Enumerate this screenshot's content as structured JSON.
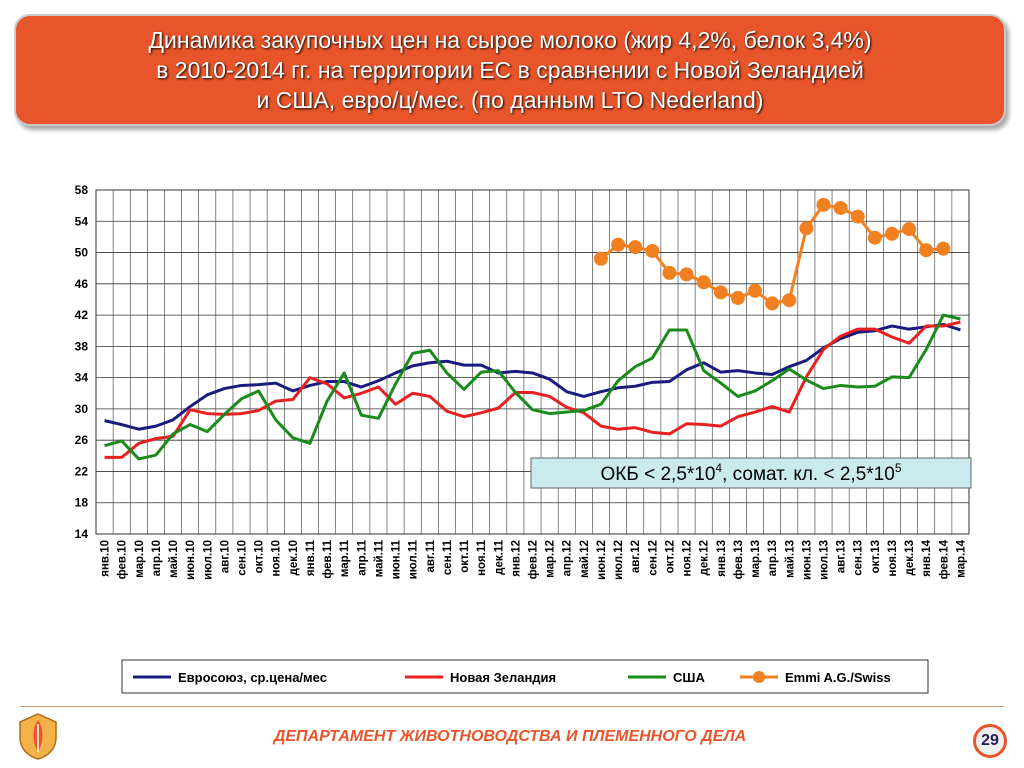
{
  "slide": {
    "title": "Динамика закупочных цен на сырое молоко (жир 4,2%, белок 3,4%)\nв 2010-2014 гг. на территории ЕС в сравнении с Новой Зеландией\nи США, евро/ц/мес. (по данным LTO Nederland)",
    "footer": "ДЕПАРТАМЕНТ ЖИВОТНОВОДСТВА И ПЛЕМЕННОГО ДЕЛА",
    "page_number": "29",
    "logo_icon": "agriculture-emblem-icon"
  },
  "chart_data": {
    "type": "line",
    "title": "",
    "xlabel": "",
    "ylabel": "",
    "ylim": [
      14,
      58
    ],
    "yticks": [
      14,
      18,
      22,
      26,
      30,
      34,
      38,
      42,
      46,
      50,
      54,
      58
    ],
    "grid": "horizontal and vertical",
    "legend_position": "bottom",
    "annotation": {
      "text_pre": "ОКБ < 2,5*10",
      "sup1": "4",
      "text_mid": ", сомат. кл. < 2,5*10",
      "sup2": "5"
    },
    "categories": [
      "янв.10",
      "фев.10",
      "мар.10",
      "апр.10",
      "май.10",
      "июн.10",
      "июл.10",
      "авг.10",
      "сен.10",
      "окт.10",
      "ноя.10",
      "дек.10",
      "янв.11",
      "фев.11",
      "мар.11",
      "апр.11",
      "май.11",
      "июн.11",
      "июл.11",
      "авг.11",
      "сен.11",
      "окт.11",
      "ноя.11",
      "дек.11",
      "янв.12",
      "фев.12",
      "мар.12",
      "апр.12",
      "май.12",
      "июн.12",
      "июл.12",
      "авг.12",
      "сен.12",
      "окт.12",
      "ноя.12",
      "дек.12",
      "янв.13",
      "фев.13",
      "мар.13",
      "апр.13",
      "май.13",
      "июн.13",
      "июл.13",
      "авг.13",
      "сен.13",
      "окт.13",
      "ноя.13",
      "дек.13",
      "янв.14",
      "фев.14",
      "мар.14"
    ],
    "series": [
      {
        "name": "Евросоюз, ср.цена/мес",
        "color": "#1a1a80",
        "marker": "none",
        "values": [
          28.5,
          28.0,
          27.4,
          27.8,
          28.6,
          30.3,
          31.8,
          32.6,
          33.0,
          33.1,
          33.3,
          32.3,
          33.0,
          33.5,
          33.5,
          32.8,
          33.6,
          34.6,
          35.5,
          35.9,
          36.1,
          35.6,
          35.6,
          34.6,
          34.8,
          34.6,
          33.8,
          32.2,
          31.6,
          32.2,
          32.7,
          32.9,
          33.4,
          33.5,
          35.0,
          35.9,
          34.7,
          34.9,
          34.6,
          34.4,
          35.4,
          36.2,
          37.8,
          39.0,
          39.8,
          40.0,
          40.6,
          40.2,
          40.5,
          40.8,
          40.1
        ]
      },
      {
        "name": "Новая Зеландия",
        "color": "#e82020",
        "marker": "none",
        "values": [
          23.8,
          23.8,
          25.6,
          26.2,
          26.5,
          29.9,
          29.4,
          29.3,
          29.4,
          29.8,
          31.0,
          31.2,
          34.0,
          33.2,
          31.4,
          32.0,
          32.8,
          30.6,
          32.0,
          31.6,
          29.7,
          29.0,
          29.5,
          30.1,
          32.1,
          32.1,
          31.6,
          30.2,
          29.5,
          27.8,
          27.4,
          27.6,
          27.0,
          26.8,
          28.1,
          28.0,
          27.8,
          29.0,
          29.6,
          30.3,
          29.6,
          34.1,
          37.6,
          39.3,
          40.2,
          40.2,
          39.2,
          38.4,
          40.6,
          40.6,
          41.1
        ]
      },
      {
        "name": "США",
        "color": "#1a8a1a",
        "marker": "none",
        "values": [
          25.3,
          25.9,
          23.6,
          24.1,
          26.8,
          28.0,
          27.1,
          29.3,
          31.3,
          32.3,
          28.6,
          26.3,
          25.6,
          31.0,
          34.6,
          29.2,
          28.8,
          33.2,
          37.1,
          37.5,
          34.6,
          32.5,
          34.7,
          34.9,
          32.1,
          29.9,
          29.4,
          29.6,
          29.8,
          30.6,
          33.6,
          35.4,
          36.5,
          40.1,
          40.1,
          34.9,
          33.3,
          31.6,
          32.3,
          33.6,
          35.1,
          33.7,
          32.6,
          33.0,
          32.8,
          32.9,
          34.1,
          34.0,
          37.6,
          42.0,
          41.5
        ]
      },
      {
        "name": "Emmi A.G./Swiss",
        "color": "#f08020",
        "marker": "circle",
        "values": [
          null,
          null,
          null,
          null,
          null,
          null,
          null,
          null,
          null,
          null,
          null,
          null,
          null,
          null,
          null,
          null,
          null,
          null,
          null,
          null,
          null,
          null,
          null,
          null,
          null,
          null,
          null,
          null,
          null,
          49.2,
          51.0,
          50.7,
          50.2,
          47.4,
          47.2,
          46.2,
          44.9,
          44.2,
          45.1,
          43.5,
          43.9,
          53.1,
          56.1,
          55.7,
          54.6,
          51.9,
          52.4,
          53.0,
          50.3,
          50.5,
          null
        ]
      }
    ]
  }
}
